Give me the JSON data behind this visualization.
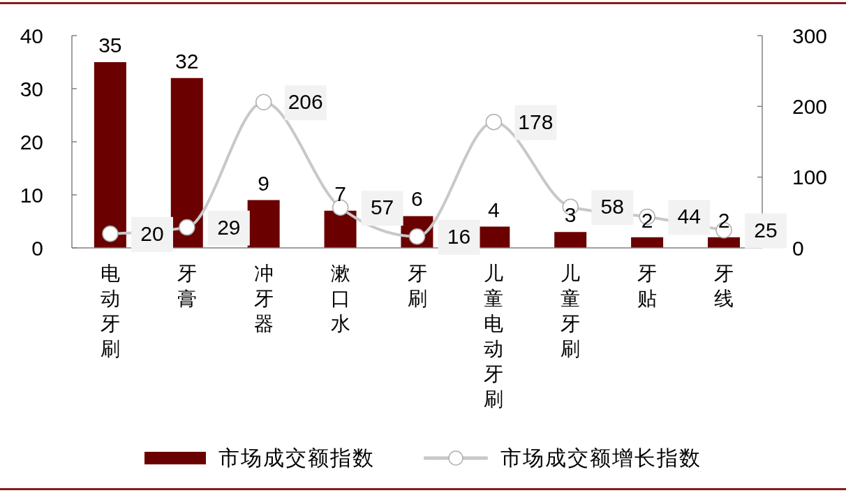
{
  "chart_data": {
    "type": "bar",
    "categories": [
      "电动牙刷",
      "牙膏",
      "冲牙器",
      "漱口水",
      "牙刷",
      "儿童电动牙刷",
      "儿童牙刷",
      "牙贴",
      "牙线"
    ],
    "series": [
      {
        "name": "市场成交额指数",
        "color": "#6a0000",
        "values": [
          35,
          32,
          9,
          7,
          6,
          4,
          3,
          2,
          2
        ]
      },
      {
        "name": "市场成交额增长指数",
        "type": "line",
        "axis": "y2",
        "color": "#c8c8c8",
        "values": [
          20,
          29,
          206,
          57,
          16,
          178,
          58,
          44,
          25
        ]
      }
    ],
    "ylim": [
      0,
      40
    ],
    "yticks": [
      0,
      10,
      20,
      30,
      40
    ],
    "y2lim": [
      0,
      300
    ],
    "y2ticks": [
      0,
      100,
      200,
      300
    ],
    "marker": "circle",
    "legend": "bottom",
    "data_labels": true
  }
}
